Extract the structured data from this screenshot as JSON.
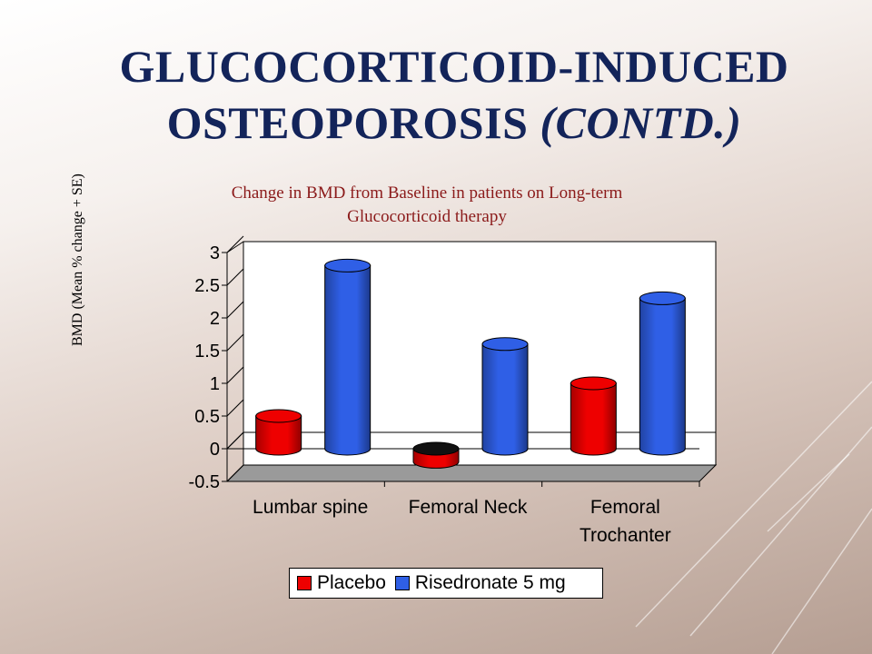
{
  "slide": {
    "title_line1": "GLUCOCORTICOID-INDUCED",
    "title_line2": "OSTEOPOROSIS",
    "title_ital": "(CONTD.)"
  },
  "chart_data": {
    "type": "bar",
    "title": "Change in BMD from Baseline in patients on Long-term Glucocorticoid therapy",
    "title_line1": "Change in BMD from Baseline in patients on Long-term",
    "title_line2": "Glucocorticoid therapy",
    "ylabel": "BMD (Mean % change + SE)",
    "xlabel": "",
    "ylim": [
      -0.5,
      3
    ],
    "yticks": [
      "3",
      "2.5",
      "2",
      "1.5",
      "1",
      "0.5",
      "0",
      "-0.5"
    ],
    "categories": [
      "Lumbar spine",
      "Femoral Neck",
      "Femoral Trochanter"
    ],
    "category_lines": [
      [
        "Lumbar spine"
      ],
      [
        "Femoral Neck"
      ],
      [
        "Femoral",
        "Trochanter"
      ]
    ],
    "series": [
      {
        "name": "Placebo",
        "values": [
          0.5,
          -0.2,
          1.0
        ],
        "color": "#ee0000"
      },
      {
        "name": "Risedronate 5 mg",
        "values": [
          2.8,
          1.6,
          2.3
        ],
        "color": "#2f5fe6"
      }
    ],
    "legend_position": "bottom"
  }
}
